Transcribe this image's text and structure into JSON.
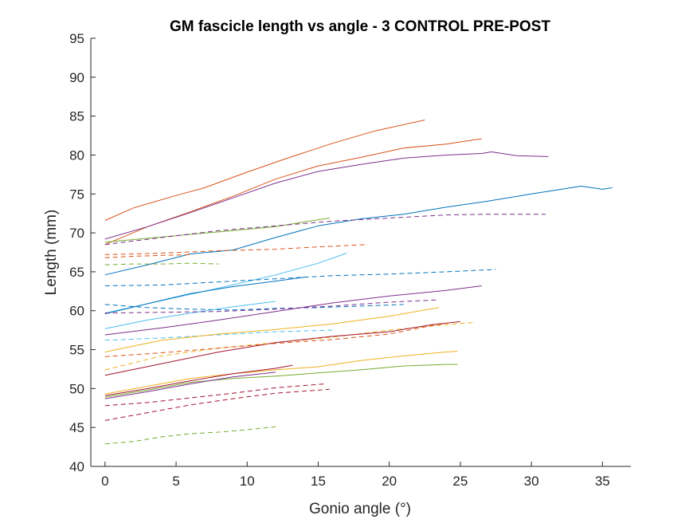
{
  "chart_data": {
    "type": "line",
    "title": "GM fascicle length vs angle - 3 CONTROL PRE-POST",
    "xlabel": "Gonio angle (°)",
    "ylabel": "Length (mm)",
    "xlim": [
      -1,
      37
    ],
    "ylim": [
      40,
      95
    ],
    "xticks": [
      0,
      5,
      10,
      15,
      20,
      25,
      30,
      35
    ],
    "yticks": [
      40,
      45,
      50,
      55,
      60,
      65,
      70,
      75,
      80,
      85,
      90,
      95
    ],
    "grid": false,
    "legend": "none",
    "series": [
      {
        "color": "#D95319",
        "dash": false,
        "x": [
          0,
          2,
          5,
          7,
          10,
          13,
          16,
          19,
          22.5
        ],
        "y": [
          71.6,
          73.2,
          74.8,
          75.8,
          77.8,
          79.7,
          81.5,
          83.1,
          84.5
        ]
      },
      {
        "color": "#D95319",
        "dash": false,
        "x": [
          0,
          3,
          6,
          9,
          12,
          15,
          18,
          21,
          24,
          26.5
        ],
        "y": [
          68.5,
          70.8,
          72.7,
          74.7,
          76.9,
          78.6,
          79.7,
          80.9,
          81.4,
          82.1
        ]
      },
      {
        "color": "#7E2F8E",
        "dash": false,
        "x": [
          0,
          3,
          6,
          9,
          12,
          15,
          18,
          21,
          24,
          26.5,
          27.2,
          29,
          31.2
        ],
        "y": [
          69.2,
          70.8,
          72.6,
          74.5,
          76.4,
          77.9,
          78.8,
          79.6,
          80.0,
          80.2,
          80.4,
          79.9,
          79.8
        ]
      },
      {
        "color": "#0072BD",
        "dash": false,
        "x": [
          0,
          3,
          6,
          9,
          12,
          15,
          18,
          21,
          24,
          27,
          30,
          33.5,
          35,
          35.7
        ],
        "y": [
          64.6,
          65.9,
          67.3,
          67.8,
          69.4,
          70.9,
          71.8,
          72.4,
          73.3,
          74.1,
          75.0,
          76.0,
          75.6,
          75.8
        ]
      },
      {
        "color": "#77AC30",
        "dash": false,
        "x": [
          0,
          3,
          6,
          9,
          12,
          14,
          15.8
        ],
        "y": [
          68.8,
          69.3,
          69.8,
          70.3,
          70.8,
          71.4,
          71.9
        ]
      },
      {
        "color": "#7E2F8E",
        "dash": true,
        "x": [
          0,
          4,
          8,
          12,
          16,
          20,
          24,
          27,
          31
        ],
        "y": [
          68.5,
          69.4,
          70.3,
          70.9,
          71.5,
          71.9,
          72.3,
          72.4,
          72.4
        ]
      },
      {
        "color": "#D95319",
        "dash": true,
        "x": [
          0,
          4,
          8,
          12,
          15,
          18.5
        ],
        "y": [
          67.2,
          67.4,
          67.7,
          67.9,
          68.2,
          68.5
        ]
      },
      {
        "color": "#D95319",
        "dash": true,
        "x": [
          0,
          2,
          4,
          6
        ],
        "y": [
          66.8,
          67.0,
          67.1,
          67.2
        ]
      },
      {
        "color": "#77AC30",
        "dash": true,
        "x": [
          0,
          2,
          4,
          6,
          8
        ],
        "y": [
          65.9,
          66.0,
          66.0,
          66.1,
          66.0
        ]
      },
      {
        "color": "#4DBEEE",
        "dash": false,
        "x": [
          0,
          4,
          8,
          12,
          15,
          17
        ],
        "y": [
          59.7,
          61.3,
          62.9,
          64.6,
          66.1,
          67.4
        ]
      },
      {
        "color": "#0072BD",
        "dash": false,
        "x": [
          0,
          3,
          6,
          9,
          12,
          14
        ],
        "y": [
          59.6,
          60.9,
          62.2,
          63.1,
          63.8,
          64.3
        ]
      },
      {
        "color": "#0072BD",
        "dash": true,
        "x": [
          0,
          4,
          8,
          12,
          16,
          20,
          24,
          27.5
        ],
        "y": [
          63.2,
          63.3,
          63.7,
          64.1,
          64.5,
          64.7,
          65.0,
          65.3
        ]
      },
      {
        "color": "#0072BD",
        "dash": true,
        "x": [
          0,
          3,
          6,
          9,
          12,
          15,
          18,
          21
        ],
        "y": [
          60.8,
          60.4,
          60.2,
          60.1,
          60.3,
          60.4,
          60.6,
          60.8
        ]
      },
      {
        "color": "#4DBEEE",
        "dash": false,
        "x": [
          0,
          3,
          6,
          9,
          12
        ],
        "y": [
          57.7,
          58.8,
          59.7,
          60.5,
          61.2
        ]
      },
      {
        "color": "#7E2F8E",
        "dash": false,
        "x": [
          0,
          4,
          8,
          12,
          16,
          20,
          24,
          26.5
        ],
        "y": [
          56.9,
          57.8,
          58.8,
          59.9,
          61.0,
          61.9,
          62.6,
          63.2
        ]
      },
      {
        "color": "#7E2F8E",
        "dash": true,
        "x": [
          0,
          4,
          8,
          12,
          16,
          20,
          23.5
        ],
        "y": [
          59.7,
          59.8,
          59.9,
          60.2,
          60.6,
          61.1,
          61.4
        ]
      },
      {
        "color": "#4DBEEE",
        "dash": true,
        "x": [
          0,
          4,
          8,
          12,
          16
        ],
        "y": [
          56.2,
          56.5,
          56.9,
          57.3,
          57.5
        ]
      },
      {
        "color": "#EDB120",
        "dash": false,
        "x": [
          0,
          4,
          8,
          12,
          16,
          20,
          23.5
        ],
        "y": [
          54.7,
          56.2,
          57.0,
          57.6,
          58.3,
          59.3,
          60.4
        ]
      },
      {
        "color": "#EDB120",
        "dash": true,
        "x": [
          0,
          4,
          8,
          12,
          16,
          20,
          24,
          26
        ],
        "y": [
          52.4,
          54.2,
          55.2,
          55.9,
          56.6,
          57.5,
          58.2,
          58.5
        ]
      },
      {
        "color": "#A2142F",
        "dash": false,
        "x": [
          0,
          4,
          8,
          12,
          16,
          20,
          23,
          25
        ],
        "y": [
          51.7,
          53.2,
          54.7,
          55.9,
          56.7,
          57.3,
          58.2,
          58.6
        ]
      },
      {
        "color": "#D95319",
        "dash": true,
        "x": [
          0,
          4,
          8,
          12,
          16,
          20,
          23,
          24.5
        ],
        "y": [
          54.1,
          54.6,
          55.2,
          55.8,
          56.3,
          57.0,
          58.1,
          58.5
        ]
      },
      {
        "color": "#EDB120",
        "dash": false,
        "x": [
          0,
          3,
          6,
          9,
          12,
          15,
          18,
          21,
          24,
          24.8
        ],
        "y": [
          49.3,
          50.3,
          51.3,
          51.9,
          52.4,
          52.8,
          53.6,
          54.2,
          54.7,
          54.8
        ]
      },
      {
        "color": "#77AC30",
        "dash": false,
        "x": [
          0,
          3,
          6,
          9,
          12,
          15,
          18,
          21,
          24,
          24.8
        ],
        "y": [
          48.9,
          49.8,
          50.8,
          51.3,
          51.6,
          52.0,
          52.4,
          52.9,
          53.1,
          53.1
        ]
      },
      {
        "color": "#A2142F",
        "dash": false,
        "x": [
          0,
          3,
          6,
          9,
          12,
          13.2
        ],
        "y": [
          49.1,
          50.0,
          51.0,
          51.9,
          52.6,
          53.0
        ]
      },
      {
        "color": "#7E2F8E",
        "dash": false,
        "x": [
          0,
          3,
          6,
          9,
          12
        ],
        "y": [
          48.7,
          49.6,
          50.6,
          51.5,
          52.1
        ]
      },
      {
        "color": "#A2142F",
        "dash": true,
        "x": [
          0,
          3,
          6,
          9,
          12,
          15.5
        ],
        "y": [
          47.8,
          48.2,
          48.8,
          49.4,
          50.1,
          50.6
        ]
      },
      {
        "color": "#A2142F",
        "dash": true,
        "x": [
          0,
          3,
          6,
          9,
          12,
          15.8
        ],
        "y": [
          45.9,
          46.9,
          47.9,
          48.7,
          49.4,
          49.9
        ]
      },
      {
        "color": "#77AC30",
        "dash": true,
        "x": [
          0,
          2,
          4,
          6,
          8,
          10,
          12
        ],
        "y": [
          42.9,
          43.2,
          43.8,
          44.2,
          44.4,
          44.7,
          45.1
        ]
      }
    ]
  }
}
